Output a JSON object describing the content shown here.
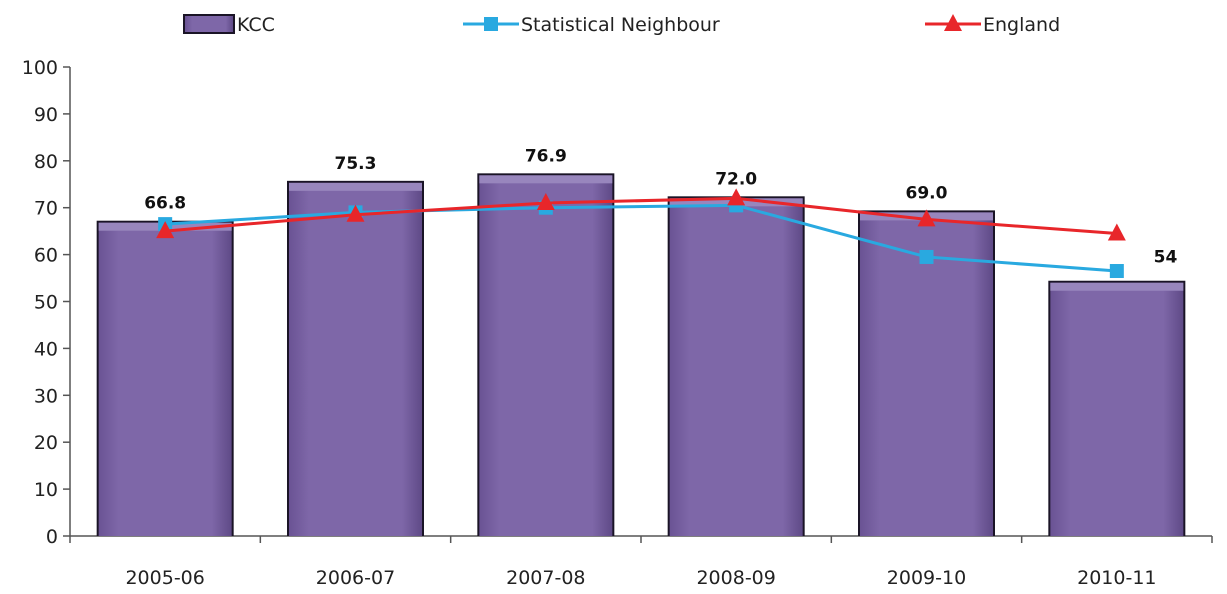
{
  "chart_data": {
    "type": "bar",
    "categories": [
      "2005-06",
      "2006-07",
      "2007-08",
      "2008-09",
      "2009-10",
      "2010-11"
    ],
    "series": [
      {
        "name": "KCC",
        "kind": "bar",
        "color": "#7b64a4",
        "values": [
          66.8,
          75.3,
          76.9,
          72.0,
          69.0,
          54
        ],
        "labels": [
          "66.8",
          "75.3",
          "76.9",
          "72.0",
          "69.0",
          "54"
        ]
      },
      {
        "name": "Statistical Neighbour",
        "kind": "line",
        "marker": "square",
        "color": "#29a9e0",
        "values": [
          66.5,
          69.0,
          70.0,
          70.5,
          59.5,
          56.5
        ]
      },
      {
        "name": "England",
        "kind": "line",
        "marker": "triangle",
        "color": "#e8262a",
        "values": [
          65.0,
          68.5,
          71.0,
          72.0,
          67.5,
          64.5
        ]
      }
    ],
    "ylim": [
      0,
      100
    ],
    "yticks": [
      "0",
      "10",
      "20",
      "30",
      "40",
      "50",
      "60",
      "70",
      "80",
      "90",
      "100"
    ],
    "xlabel": "",
    "ylabel": "",
    "grid": false,
    "legend_position": "top"
  }
}
